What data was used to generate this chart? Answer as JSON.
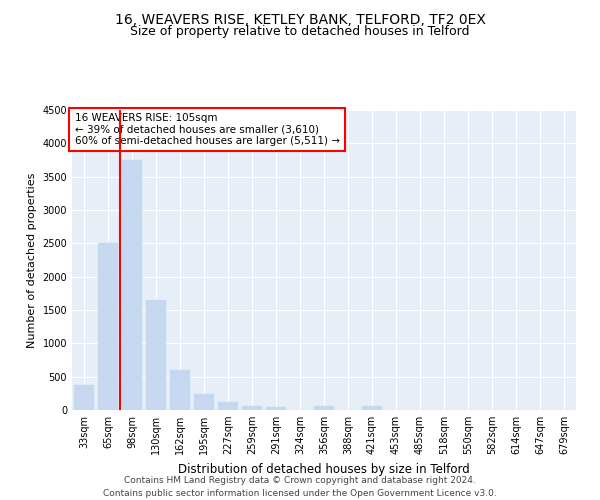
{
  "title1": "16, WEAVERS RISE, KETLEY BANK, TELFORD, TF2 0EX",
  "title2": "Size of property relative to detached houses in Telford",
  "xlabel": "Distribution of detached houses by size in Telford",
  "ylabel": "Number of detached properties",
  "categories": [
    "33sqm",
    "65sqm",
    "98sqm",
    "130sqm",
    "162sqm",
    "195sqm",
    "227sqm",
    "259sqm",
    "291sqm",
    "324sqm",
    "356sqm",
    "388sqm",
    "421sqm",
    "453sqm",
    "485sqm",
    "518sqm",
    "550sqm",
    "582sqm",
    "614sqm",
    "647sqm",
    "679sqm"
  ],
  "values": [
    380,
    2500,
    3750,
    1650,
    600,
    240,
    115,
    65,
    50,
    0,
    55,
    0,
    55,
    0,
    0,
    0,
    0,
    0,
    0,
    0,
    0
  ],
  "bar_color": "#c5d8ef",
  "bar_edgecolor": "#c5d8ef",
  "redline_x": 1.5,
  "redline_label": "16 WEAVERS RISE: 105sqm",
  "annotation_line2": "← 39% of detached houses are smaller (3,610)",
  "annotation_line3": "60% of semi-detached houses are larger (5,511) →",
  "ylim": [
    0,
    4500
  ],
  "yticks": [
    0,
    500,
    1000,
    1500,
    2000,
    2500,
    3000,
    3500,
    4000,
    4500
  ],
  "background_color": "#e8eef8",
  "footer_line1": "Contains HM Land Registry data © Crown copyright and database right 2024.",
  "footer_line2": "Contains public sector information licensed under the Open Government Licence v3.0.",
  "title1_fontsize": 10,
  "title2_fontsize": 9,
  "xlabel_fontsize": 8.5,
  "ylabel_fontsize": 8,
  "tick_fontsize": 7,
  "footer_fontsize": 6.5,
  "annot_fontsize": 7.5
}
